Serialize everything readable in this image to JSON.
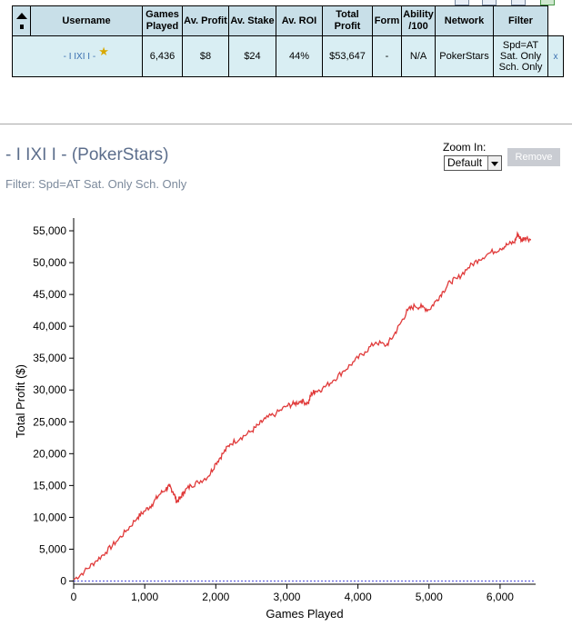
{
  "table": {
    "headers": [
      {
        "key": "sort",
        "label": ""
      },
      {
        "key": "username",
        "label": "Username"
      },
      {
        "key": "games",
        "label": "Games Played"
      },
      {
        "key": "avprofit",
        "label": "Av. Profit"
      },
      {
        "key": "avstake",
        "label": "Av. Stake"
      },
      {
        "key": "avroi",
        "label": "Av. ROI"
      },
      {
        "key": "totalprofit",
        "label": "Total Profit"
      },
      {
        "key": "form",
        "label": "Form"
      },
      {
        "key": "ability",
        "label": "Ability /100"
      },
      {
        "key": "network",
        "label": "Network"
      },
      {
        "key": "filter",
        "label": "Filter"
      }
    ],
    "row": {
      "username": "- I IXI I -",
      "games": "6,436",
      "avprofit": "$8",
      "avstake": "$24",
      "avroi": "44%",
      "totalprofit": "$53,647",
      "form": "-",
      "ability": "N/A",
      "network": "PokerStars",
      "filter": "Spd=AT Sat. Only Sch. Only",
      "remove_x": "x"
    }
  },
  "player": {
    "title": "- I IXI I - (PokerStars)",
    "filter_text": "Filter: Spd=AT Sat. Only Sch. Only"
  },
  "zoom": {
    "label": "Zoom In:",
    "selected": "Default"
  },
  "remove_button": "Remove",
  "colors": {
    "header_bg": "#c8dfe8",
    "row_bg": "#d9eef3",
    "line": "#e03a3a",
    "zero_line": "#4a4ad8",
    "link": "#3a6fb0"
  },
  "chart_data": {
    "type": "line",
    "xlabel": "Games Played",
    "ylabel": "Total Profit ($)",
    "xlim": [
      0,
      6500
    ],
    "ylim": [
      -500,
      57000
    ],
    "xticks": [
      0,
      1000,
      2000,
      3000,
      4000,
      5000,
      6000
    ],
    "yticks": [
      0,
      5000,
      10000,
      15000,
      20000,
      25000,
      30000,
      35000,
      40000,
      45000,
      50000,
      55000
    ],
    "series": [
      {
        "x": [
          0,
          150,
          300,
          450,
          600,
          750,
          900,
          1000,
          1100,
          1200,
          1300,
          1350,
          1400,
          1450,
          1500,
          1550,
          1650,
          1750,
          1900,
          2000,
          2100,
          2200,
          2350,
          2500,
          2600,
          2700,
          2850,
          3000,
          3100,
          3200,
          3300,
          3350,
          3400,
          3500,
          3650,
          3800,
          3950,
          4100,
          4250,
          4400,
          4500,
          4600,
          4700,
          4800,
          4900,
          5000,
          5100,
          5200,
          5300,
          5400,
          5550,
          5700,
          5850,
          6000,
          6100,
          6200,
          6250,
          6300,
          6350,
          6436
        ],
        "y": [
          200,
          1500,
          3000,
          4500,
          6200,
          8000,
          10000,
          11000,
          12000,
          13500,
          14500,
          14800,
          14000,
          12500,
          13000,
          14000,
          15000,
          15500,
          16500,
          18500,
          20000,
          21500,
          22500,
          23500,
          24500,
          25500,
          26300,
          27500,
          27800,
          28300,
          27900,
          29500,
          29800,
          30200,
          31500,
          33000,
          34500,
          36000,
          37500,
          37000,
          38500,
          40500,
          42500,
          43200,
          43000,
          42600,
          44000,
          45500,
          47000,
          47500,
          49200,
          50500,
          51500,
          52200,
          52800,
          53200,
          54500,
          53500,
          54000,
          53600
        ]
      }
    ]
  }
}
